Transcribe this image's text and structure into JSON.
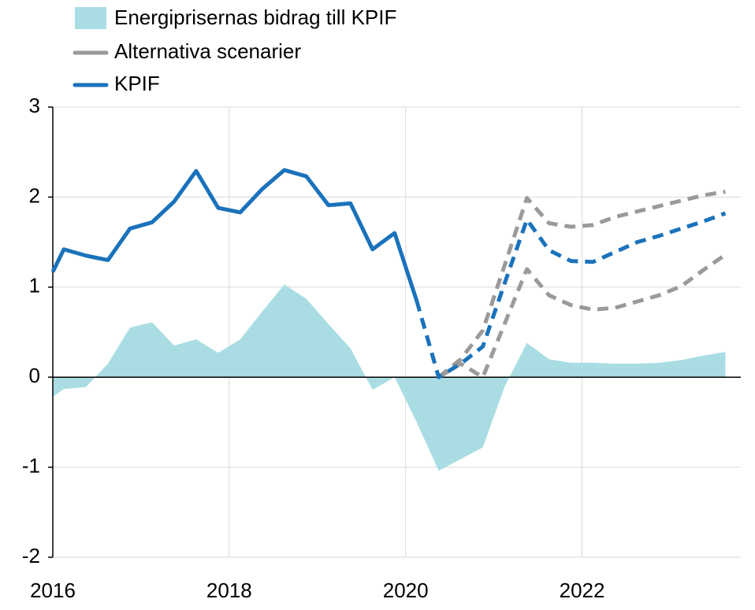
{
  "chart_data": {
    "type": "line",
    "x": [
      2016.0,
      2016.125,
      2016.375,
      2016.625,
      2016.875,
      2017.125,
      2017.375,
      2017.625,
      2017.875,
      2018.125,
      2018.375,
      2018.625,
      2018.875,
      2019.125,
      2019.375,
      2019.625,
      2019.875,
      2020.125,
      2020.375,
      2020.625,
      2020.875,
      2021.125,
      2021.375,
      2021.625,
      2021.875,
      2022.125,
      2022.375,
      2022.625,
      2022.875,
      2023.125,
      2023.375,
      2023.625
    ],
    "area": {
      "name": "Energiprisernas bidrag till KPIF",
      "color": "#a9dde3",
      "values": [
        -0.22,
        -0.13,
        -0.11,
        0.15,
        0.55,
        0.61,
        0.35,
        0.42,
        0.27,
        0.42,
        0.73,
        1.03,
        0.87,
        0.59,
        0.32,
        -0.14,
        0.0,
        -0.5,
        -1.04,
        -0.91,
        -0.78,
        -0.1,
        0.38,
        0.2,
        0.16,
        0.16,
        0.15,
        0.15,
        0.16,
        0.19,
        0.24,
        0.28
      ]
    },
    "scenarios": {
      "name": "Alternativa scenarier",
      "color": "#9a9a9a",
      "upper": [
        null,
        null,
        null,
        null,
        null,
        null,
        null,
        null,
        null,
        null,
        null,
        null,
        null,
        null,
        null,
        null,
        null,
        null,
        0.0,
        0.2,
        0.52,
        1.25,
        1.99,
        1.71,
        1.67,
        1.69,
        1.78,
        1.84,
        1.9,
        1.96,
        2.02,
        2.06
      ],
      "lower": [
        null,
        null,
        null,
        null,
        null,
        null,
        null,
        null,
        null,
        null,
        null,
        null,
        null,
        null,
        null,
        null,
        null,
        null,
        0.0,
        0.15,
        0.0,
        0.6,
        1.2,
        0.91,
        0.8,
        0.75,
        0.77,
        0.84,
        0.91,
        1.01,
        1.19,
        1.36
      ]
    },
    "kpif": {
      "name": "KPIF",
      "color": "#1a72bb",
      "values": [
        1.17,
        1.42,
        1.35,
        1.3,
        1.65,
        1.72,
        1.95,
        2.29,
        1.88,
        1.83,
        2.09,
        2.3,
        2.23,
        1.91,
        1.93,
        1.42,
        1.6,
        0.85,
        null,
        null,
        null,
        null,
        null,
        null,
        null,
        null,
        null,
        null,
        null,
        null,
        null,
        null
      ],
      "forecast_values": [
        null,
        null,
        null,
        null,
        null,
        null,
        null,
        null,
        null,
        null,
        null,
        null,
        null,
        null,
        null,
        null,
        null,
        0.85,
        0.0,
        0.15,
        0.34,
        1.05,
        1.75,
        1.41,
        1.29,
        1.28,
        1.39,
        1.5,
        1.57,
        1.65,
        1.73,
        1.82
      ]
    },
    "xlim": [
      2016,
      2023.8
    ],
    "xticks": [
      2016,
      2018,
      2020,
      2022
    ],
    "ylim": [
      -2,
      3
    ],
    "yticks": [
      -2,
      -1,
      0,
      1,
      2,
      3
    ],
    "grid": true
  }
}
